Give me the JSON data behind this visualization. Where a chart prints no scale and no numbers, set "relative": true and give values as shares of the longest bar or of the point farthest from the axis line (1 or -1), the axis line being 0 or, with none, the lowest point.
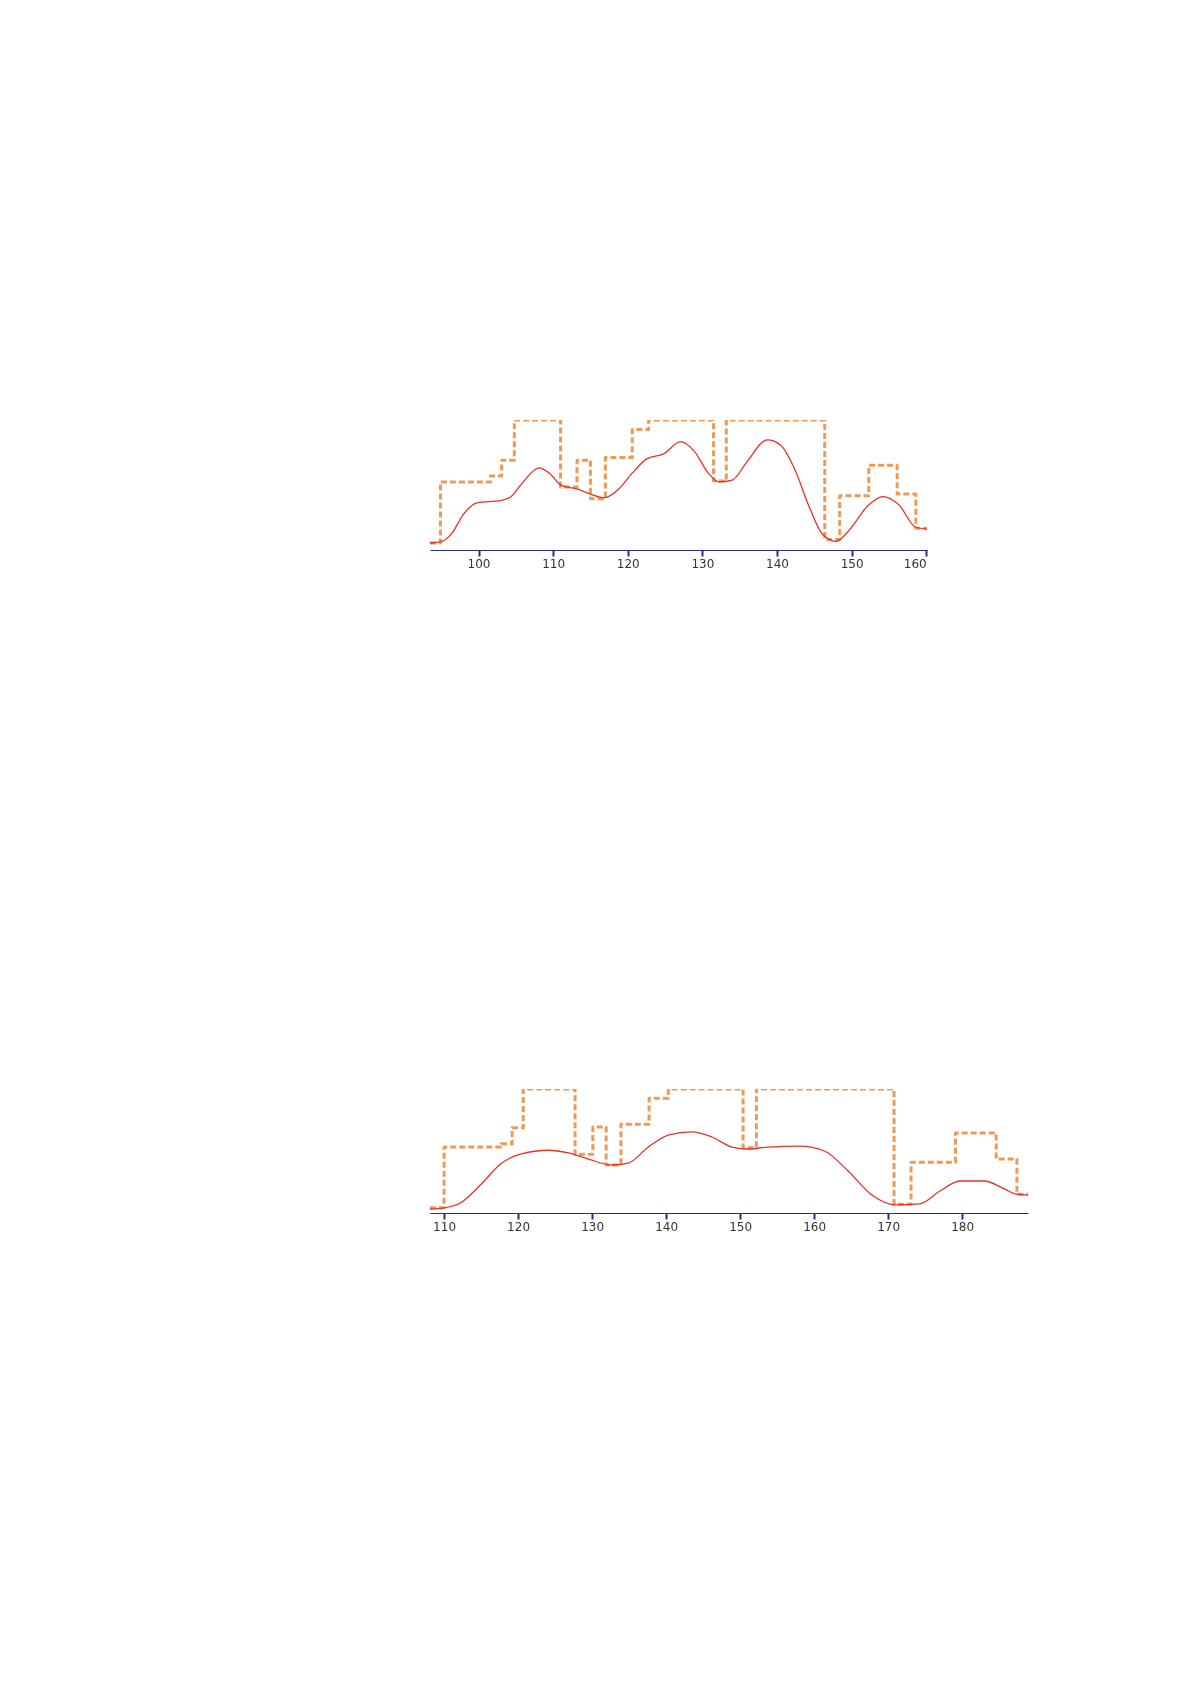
{
  "chart_data": [
    {
      "type": "step",
      "relative": true,
      "xlim": [
        93.5,
        160.1
      ],
      "xticks": [
        100,
        110,
        120,
        130,
        140,
        150,
        160
      ],
      "tick_labels": "x",
      "series": [
        {
          "color": "#ee9955",
          "line_style": "dashed",
          "x": [
            93.5,
            94.9,
            101.6,
            103.1,
            104.8,
            111.0,
            113.2,
            115.0,
            117.0,
            120.6,
            122.8,
            131.5,
            133.2,
            146.4,
            148.4,
            152.3,
            156.1,
            158.6,
            160.1
          ],
          "values": [
            0.054,
            0.524,
            0.57,
            0.691,
            1.0,
            0.484,
            0.691,
            0.395,
            0.712,
            0.927,
            1.0,
            0.53,
            1.0,
            0.081,
            0.417,
            0.651,
            0.43,
            0.167,
            0.167
          ]
        },
        {
          "type": "line",
          "color": "#e8312a",
          "line_style": "solid",
          "x": [
            93.5,
            95.1,
            96.5,
            97.9,
            99.8,
            103.0,
            104.2,
            105.8,
            108.1,
            109.5,
            111.1,
            113.2,
            115.0,
            116.9,
            118.8,
            120.6,
            122.5,
            124.8,
            127.1,
            129.0,
            130.8,
            132.2,
            134.0,
            135.9,
            138.7,
            140.5,
            142.4,
            144.2,
            146.1,
            147.9,
            149.8,
            152.1,
            154.2,
            156.3,
            158.6,
            160.1
          ],
          "values": [
            0.054,
            0.067,
            0.134,
            0.269,
            0.363,
            0.382,
            0.403,
            0.511,
            0.632,
            0.591,
            0.497,
            0.47,
            0.43,
            0.403,
            0.47,
            0.591,
            0.699,
            0.739,
            0.833,
            0.753,
            0.591,
            0.524,
            0.538,
            0.672,
            0.847,
            0.806,
            0.618,
            0.349,
            0.121,
            0.067,
            0.161,
            0.336,
            0.411,
            0.349,
            0.175,
            0.161
          ]
        }
      ]
    },
    {
      "type": "step",
      "relative": true,
      "xlim": [
        108.1,
        188.9
      ],
      "xticks": [
        110,
        120,
        130,
        140,
        150,
        160,
        170,
        180
      ],
      "tick_labels": "x",
      "series": [
        {
          "color": "#ee9955",
          "line_style": "dashed",
          "x": [
            108.1,
            110.0,
            117.7,
            119.2,
            120.7,
            127.7,
            130.1,
            131.9,
            133.9,
            137.7,
            140.3,
            150.4,
            152.2,
            170.8,
            173.1,
            179.1,
            184.6,
            187.4,
            188.9
          ],
          "values": [
            0.042,
            0.532,
            0.558,
            0.687,
            1.0,
            0.474,
            0.694,
            0.387,
            0.716,
            0.926,
            1.0,
            0.526,
            1.0,
            0.071,
            0.41,
            0.645,
            0.435,
            0.152,
            0.152
          ]
        },
        {
          "type": "line",
          "color": "#e8312a",
          "line_style": "solid",
          "x": [
            108.1,
            110.0,
            112.2,
            114.9,
            117.8,
            120.3,
            124.1,
            126.8,
            129.5,
            132.7,
            134.9,
            137.6,
            140.3,
            143.5,
            146.2,
            148.9,
            151.1,
            153.8,
            158.1,
            161.4,
            164.6,
            167.8,
            171.1,
            174.3,
            177.0,
            179.7,
            183.0,
            185.7,
            187.3,
            188.9
          ],
          "values": [
            0.032,
            0.042,
            0.081,
            0.226,
            0.403,
            0.474,
            0.506,
            0.484,
            0.435,
            0.387,
            0.403,
            0.532,
            0.629,
            0.655,
            0.613,
            0.532,
            0.516,
            0.532,
            0.539,
            0.5,
            0.339,
            0.145,
            0.065,
            0.074,
            0.177,
            0.258,
            0.258,
            0.194,
            0.152,
            0.145
          ]
        }
      ]
    }
  ]
}
